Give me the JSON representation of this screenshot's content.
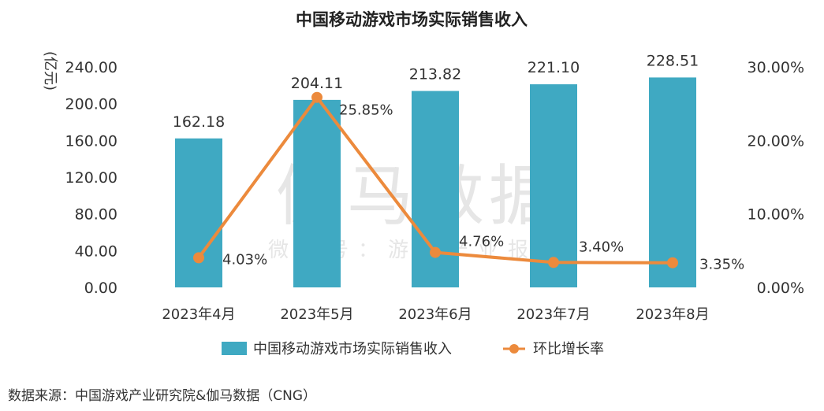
{
  "chart_data": {
    "type": "bar+line",
    "title": "中国移动游戏市场实际销售收入",
    "categories": [
      "2023年4月",
      "2023年5月",
      "2023年6月",
      "2023年7月",
      "2023年8月"
    ],
    "series": [
      {
        "name": "中国移动游戏市场实际销售收入",
        "type": "bar",
        "axis": "left",
        "color": "#3fa9c2",
        "values": [
          162.18,
          204.11,
          213.82,
          221.1,
          228.51
        ],
        "labels": [
          "162.18",
          "204.11",
          "213.82",
          "221.10",
          "228.51"
        ]
      },
      {
        "name": "环比增长率",
        "type": "line",
        "axis": "right",
        "color": "#ec8a3c",
        "values": [
          4.03,
          25.85,
          4.76,
          3.4,
          3.35
        ],
        "labels": [
          "4.03%",
          "25.85%",
          "4.76%",
          "3.40%",
          "3.35%"
        ]
      }
    ],
    "y_left": {
      "unit_label": "(亿元)",
      "ylim": [
        0,
        240
      ],
      "ticks": [
        0,
        40,
        80,
        120,
        160,
        200,
        240
      ],
      "tick_labels": [
        "0.00",
        "40.00",
        "80.00",
        "120.00",
        "160.00",
        "200.00",
        "240.00"
      ]
    },
    "y_right": {
      "ylim": [
        0,
        30
      ],
      "ticks": [
        0,
        10,
        20,
        30
      ],
      "tick_labels": [
        "0.00%",
        "10.00%",
        "20.00%",
        "30.00%"
      ]
    },
    "legend": {
      "placement": "bottom-center",
      "bar_label": "中国移动游戏市场实际销售收入",
      "line_label": "环比增长率"
    },
    "grid": false
  },
  "watermark": {
    "main": "伽马数据",
    "sub": "微信号：游戏产业报告"
  },
  "source": "数据来源：中国游戏产业研究院&伽马数据（CNG）"
}
